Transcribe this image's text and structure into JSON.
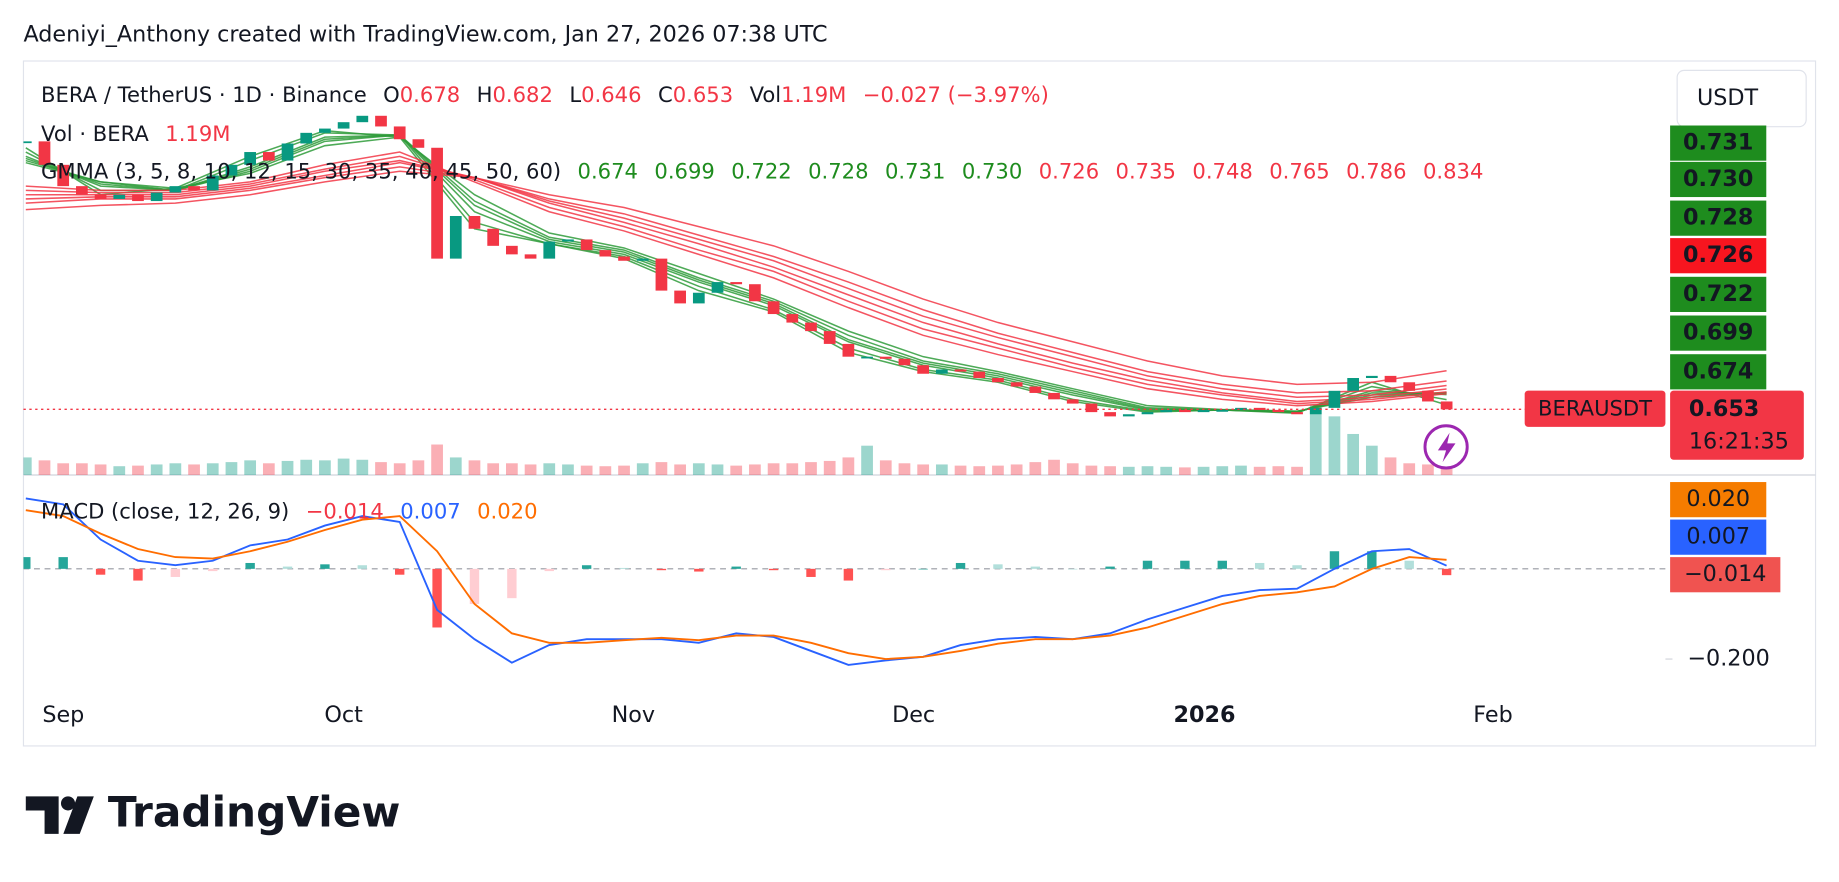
{
  "chart_data": {
    "type": "candlestick",
    "header": "Adeniyi_Anthony created with TradingView.com, Jan 27, 2026 07:38 UTC",
    "currency_button": "USDT",
    "legend": {
      "symbol": "BERA / TetherUS · 1D · Binance",
      "items": [
        {
          "label": "O",
          "value": 0.678
        },
        {
          "label": "H",
          "value": 0.682
        },
        {
          "label": "L",
          "value": 0.646
        },
        {
          "label": "C",
          "value": 0.653
        },
        {
          "label": "Vol",
          "value": "1.19M"
        }
      ],
      "change": "−0.027 (−3.97%)",
      "value_color": "#f23645"
    },
    "up_color": "#089981",
    "down_color": "#f23645",
    "ylim": [
      0.345,
      2.287
    ],
    "close": [
      1.91,
      1.8,
      1.7,
      1.66,
      1.64,
      1.66,
      1.63,
      1.67,
      1.7,
      1.68,
      1.75,
      1.8,
      1.86,
      1.82,
      1.9,
      1.95,
      1.97,
      2.0,
      2.03,
      1.98,
      1.92,
      1.88,
      1.36,
      1.56,
      1.5,
      1.42,
      1.38,
      1.36,
      1.44,
      1.45,
      1.4,
      1.37,
      1.35,
      1.36,
      1.21,
      1.15,
      1.2,
      1.25,
      1.24,
      1.16,
      1.1,
      1.06,
      1.02,
      0.96,
      0.9,
      0.9,
      0.89,
      0.86,
      0.82,
      0.84,
      0.83,
      0.8,
      0.78,
      0.76,
      0.73,
      0.7,
      0.68,
      0.64,
      0.62,
      0.63,
      0.64,
      0.65,
      0.64,
      0.65,
      0.65,
      0.66,
      0.65,
      0.64,
      0.63,
      0.66,
      0.74,
      0.8,
      0.81,
      0.78,
      0.74,
      0.69,
      0.653
    ],
    "volume": {
      "title": "Vol · BERA",
      "last": "1.19M",
      "ylim": [
        0,
        14
      ],
      "values": [
        3,
        2.5,
        2,
        2,
        1.8,
        1.5,
        1.6,
        1.8,
        2,
        1.8,
        2,
        2.2,
        2.5,
        2,
        2.4,
        2.6,
        2.5,
        2.8,
        2.6,
        2.2,
        2,
        2.5,
        5.2,
        3,
        2.5,
        2,
        2,
        1.8,
        2,
        1.8,
        1.6,
        1.5,
        1.6,
        2,
        2.2,
        1.8,
        2,
        1.8,
        1.6,
        1.8,
        2,
        2,
        2.2,
        2.4,
        3,
        5,
        2.5,
        2,
        1.8,
        1.8,
        1.6,
        1.5,
        1.6,
        1.8,
        2.2,
        2.6,
        2,
        1.6,
        1.5,
        1.4,
        1.5,
        1.4,
        1.3,
        1.4,
        1.5,
        1.6,
        1.4,
        1.5,
        1.4,
        12,
        10,
        7,
        5,
        3,
        2,
        1.8,
        1.19
      ]
    },
    "gmma": {
      "title": "GMMA (3, 5, 8, 10, 12, 15, 30, 35, 40, 45, 50, 60)",
      "legend_values": [
        "0.674",
        "0.699",
        "0.722",
        "0.728",
        "0.731",
        "0.730",
        "0.726",
        "0.735",
        "0.748",
        "0.765",
        "0.786",
        "0.834"
      ],
      "series": [
        {
          "color": "#2e9b3a",
          "values": [
            1.88,
            1.66,
            1.69,
            1.84,
            1.96,
            1.93,
            1.5,
            1.43,
            1.36,
            1.21,
            1.11,
            0.92,
            0.83,
            0.78,
            0.69,
            0.64,
            0.65,
            0.635,
            0.78,
            0.674
          ]
        },
        {
          "color": "#2e9b3a",
          "values": [
            1.86,
            1.68,
            1.68,
            1.82,
            1.95,
            1.94,
            1.53,
            1.43,
            1.37,
            1.23,
            1.12,
            0.94,
            0.84,
            0.79,
            0.7,
            0.645,
            0.65,
            0.638,
            0.76,
            0.699
          ]
        },
        {
          "color": "#2e9b3a",
          "values": [
            1.84,
            1.7,
            1.68,
            1.79,
            1.93,
            1.94,
            1.58,
            1.44,
            1.38,
            1.25,
            1.14,
            0.97,
            0.86,
            0.8,
            0.72,
            0.65,
            0.65,
            0.64,
            0.74,
            0.722
          ]
        },
        {
          "color": "#2e9b3a",
          "values": [
            1.83,
            1.71,
            1.68,
            1.78,
            1.92,
            1.94,
            1.61,
            1.45,
            1.39,
            1.26,
            1.15,
            0.98,
            0.87,
            0.81,
            0.73,
            0.655,
            0.65,
            0.642,
            0.73,
            0.728
          ]
        },
        {
          "color": "#2e9b3a",
          "values": [
            1.82,
            1.72,
            1.68,
            1.77,
            1.91,
            1.94,
            1.63,
            1.46,
            1.4,
            1.27,
            1.16,
            1.0,
            0.88,
            0.82,
            0.74,
            0.66,
            0.65,
            0.643,
            0.72,
            0.731
          ]
        },
        {
          "color": "#2e9b3a",
          "values": [
            1.81,
            1.72,
            1.69,
            1.76,
            1.89,
            1.93,
            1.66,
            1.48,
            1.41,
            1.29,
            1.17,
            1.02,
            0.9,
            0.83,
            0.75,
            0.67,
            0.652,
            0.645,
            0.71,
            0.73
          ]
        },
        {
          "color": "#f23645",
          "values": [
            1.7,
            1.68,
            1.68,
            1.72,
            1.8,
            1.86,
            1.72,
            1.58,
            1.49,
            1.38,
            1.27,
            1.13,
            1.0,
            0.91,
            0.83,
            0.75,
            0.7,
            0.67,
            0.69,
            0.726
          ]
        },
        {
          "color": "#f23645",
          "values": [
            1.68,
            1.67,
            1.67,
            1.71,
            1.78,
            1.84,
            1.73,
            1.6,
            1.51,
            1.4,
            1.3,
            1.16,
            1.03,
            0.94,
            0.85,
            0.77,
            0.72,
            0.68,
            0.7,
            0.735
          ]
        },
        {
          "color": "#f23645",
          "values": [
            1.66,
            1.66,
            1.66,
            1.7,
            1.77,
            1.82,
            1.74,
            1.62,
            1.53,
            1.43,
            1.32,
            1.19,
            1.06,
            0.96,
            0.87,
            0.79,
            0.73,
            0.69,
            0.71,
            0.748
          ]
        },
        {
          "color": "#f23645",
          "values": [
            1.64,
            1.65,
            1.65,
            1.69,
            1.75,
            1.81,
            1.74,
            1.63,
            1.55,
            1.45,
            1.35,
            1.22,
            1.09,
            0.99,
            0.9,
            0.81,
            0.75,
            0.71,
            0.72,
            0.765
          ]
        },
        {
          "color": "#f23645",
          "values": [
            1.62,
            1.64,
            1.64,
            1.68,
            1.74,
            1.79,
            1.74,
            1.64,
            1.57,
            1.47,
            1.37,
            1.25,
            1.12,
            1.01,
            0.92,
            0.83,
            0.77,
            0.73,
            0.74,
            0.786
          ]
        },
        {
          "color": "#f23645",
          "values": [
            1.59,
            1.61,
            1.62,
            1.66,
            1.72,
            1.77,
            1.74,
            1.66,
            1.6,
            1.51,
            1.42,
            1.3,
            1.17,
            1.06,
            0.97,
            0.88,
            0.81,
            0.77,
            0.78,
            0.834
          ]
        }
      ]
    },
    "price_axis_labels": [
      {
        "label": "0.731",
        "color": "#1e8c1e"
      },
      {
        "label": "0.730",
        "color": "#1e8c1e"
      },
      {
        "label": "0.728",
        "color": "#1e8c1e"
      },
      {
        "label": "0.726",
        "color": "#f7151f"
      },
      {
        "label": "0.722",
        "color": "#1e8c1e"
      },
      {
        "label": "0.699",
        "color": "#1e8c1e"
      },
      {
        "label": "0.674",
        "color": "#1e8c1e"
      }
    ],
    "last_price": {
      "symbol": "BERAUSDT",
      "label": "0.653",
      "countdown": "16:21:35",
      "color": "#f23645"
    },
    "macd": {
      "title": "MACD (close, 12, 26, 9)",
      "legend": [
        {
          "label": "−0.014",
          "color": "#f23645"
        },
        {
          "label": "0.007",
          "color": "#2962ff"
        },
        {
          "label": "0.020",
          "color": "#ff6d00"
        }
      ],
      "axis_labels": [
        {
          "label": "0.020",
          "color": "#f57c00"
        },
        {
          "label": "0.007",
          "color": "#2962ff"
        },
        {
          "label": "−0.014",
          "color": "#f05350"
        }
      ],
      "ylim": [
        -0.273,
        0.208
      ],
      "yticks": [
        {
          "value": -0.2,
          "label": "−0.200"
        }
      ],
      "macd_color": "#2962ff",
      "signal_color": "#ff6d00",
      "macd": [
        0.156,
        0.143,
        0.065,
        0.018,
        0.008,
        0.018,
        0.052,
        0.065,
        0.096,
        0.117,
        0.104,
        -0.091,
        -0.156,
        -0.208,
        -0.169,
        -0.156,
        -0.156,
        -0.156,
        -0.164,
        -0.143,
        -0.151,
        -0.182,
        -0.213,
        -0.203,
        -0.195,
        -0.169,
        -0.156,
        -0.151,
        -0.156,
        -0.143,
        -0.112,
        -0.086,
        -0.06,
        -0.047,
        -0.044,
        0.0,
        0.039,
        0.044,
        0.007
      ],
      "signal": [
        0.13,
        0.117,
        0.078,
        0.044,
        0.026,
        0.023,
        0.039,
        0.06,
        0.086,
        0.109,
        0.117,
        0.039,
        -0.078,
        -0.143,
        -0.164,
        -0.164,
        -0.158,
        -0.153,
        -0.158,
        -0.148,
        -0.148,
        -0.164,
        -0.187,
        -0.2,
        -0.195,
        -0.182,
        -0.166,
        -0.156,
        -0.156,
        -0.148,
        -0.13,
        -0.104,
        -0.078,
        -0.06,
        -0.052,
        -0.039,
        0.0,
        0.026,
        0.02
      ],
      "histogram": [
        0.026,
        0.026,
        -0.013,
        -0.026,
        -0.018,
        -0.005,
        0.013,
        0.005,
        0.01,
        0.008,
        -0.013,
        -0.13,
        -0.078,
        -0.065,
        -0.005,
        0.008,
        0.002,
        -0.003,
        -0.006,
        0.005,
        -0.003,
        -0.018,
        -0.026,
        -0.003,
        0,
        0.013,
        0.01,
        0.005,
        0,
        0.005,
        0.018,
        0.018,
        0.018,
        0.013,
        0.008,
        0.039,
        0.039,
        0.018,
        -0.014
      ]
    },
    "xticks": [
      "Sep",
      "Oct",
      "Nov",
      "Dec",
      "2026",
      "Feb"
    ],
    "footer": "TradingView"
  }
}
